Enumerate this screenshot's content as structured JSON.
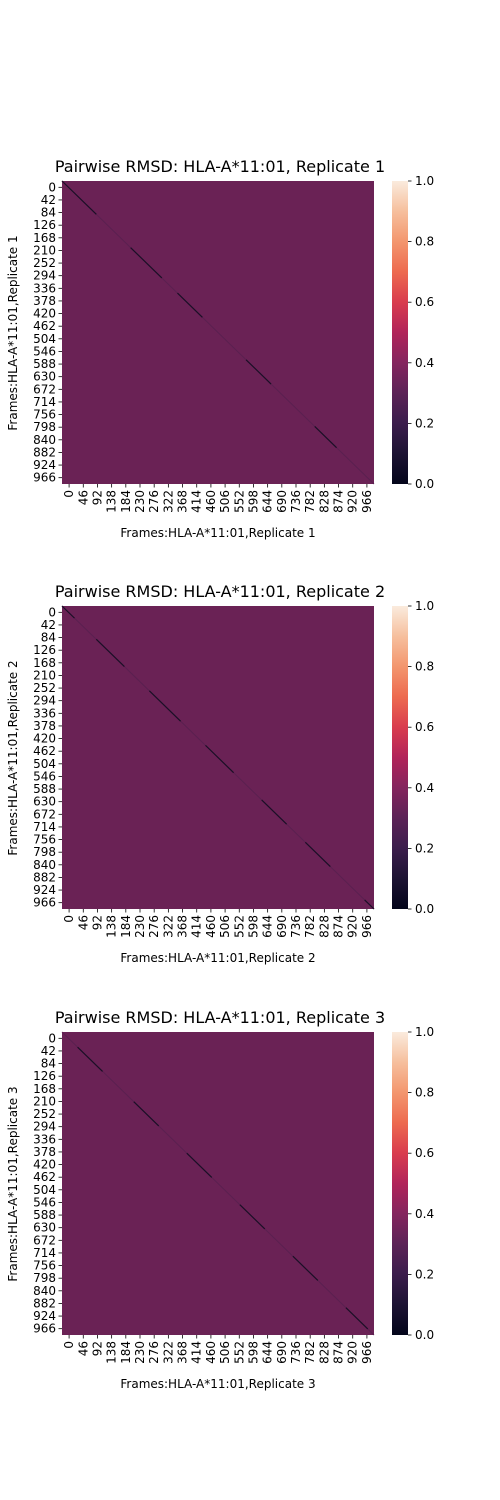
{
  "chart_data": [
    {
      "type": "heatmap",
      "title": "Pairwise RMSD: HLA-A*11:01, Replicate 1",
      "xlabel": "Frames:HLA-A*11:01,Replicate 1",
      "ylabel": "Frames:HLA-A*11:01,Replicate 1",
      "frame_range": [
        0,
        1000
      ],
      "x_ticks": [
        "0",
        "46",
        "92",
        "138",
        "184",
        "230",
        "276",
        "322",
        "368",
        "414",
        "460",
        "506",
        "552",
        "598",
        "644",
        "690",
        "736",
        "782",
        "828",
        "874",
        "920",
        "966"
      ],
      "y_ticks": [
        "0",
        "42",
        "84",
        "126",
        "168",
        "210",
        "252",
        "294",
        "336",
        "378",
        "420",
        "462",
        "504",
        "546",
        "588",
        "630",
        "672",
        "714",
        "756",
        "798",
        "840",
        "882",
        "924",
        "966"
      ],
      "background_value": 0.33,
      "diagonal_value": 0.0,
      "dark_diagonal_segments": [
        [
          0,
          110
        ],
        [
          220,
          320
        ],
        [
          370,
          450
        ],
        [
          590,
          670
        ],
        [
          810,
          880
        ],
        [
          1000,
          1000
        ]
      ],
      "colorbar": {
        "min": 0.0,
        "max": 1.0,
        "ticks": [
          "0.0",
          "0.2",
          "0.4",
          "0.6",
          "0.8",
          "1.0"
        ]
      }
    },
    {
      "type": "heatmap",
      "title": "Pairwise RMSD: HLA-A*11:01, Replicate 2",
      "xlabel": "Frames:HLA-A*11:01,Replicate 2",
      "ylabel": "Frames:HLA-A*11:01,Replicate 2",
      "frame_range": [
        0,
        1000
      ],
      "x_ticks": [
        "0",
        "46",
        "92",
        "138",
        "184",
        "230",
        "276",
        "322",
        "368",
        "414",
        "460",
        "506",
        "552",
        "598",
        "644",
        "690",
        "736",
        "782",
        "828",
        "874",
        "920",
        "966"
      ],
      "y_ticks": [
        "0",
        "42",
        "84",
        "126",
        "168",
        "210",
        "252",
        "294",
        "336",
        "378",
        "420",
        "462",
        "504",
        "546",
        "588",
        "630",
        "672",
        "714",
        "756",
        "798",
        "840",
        "882",
        "924",
        "966"
      ],
      "background_value": 0.33,
      "diagonal_value": 0.0,
      "dark_diagonal_segments": [
        [
          0,
          40
        ],
        [
          110,
          200
        ],
        [
          280,
          380
        ],
        [
          460,
          550
        ],
        [
          640,
          720
        ],
        [
          780,
          860
        ],
        [
          970,
          1000
        ]
      ],
      "colorbar": {
        "min": 0.0,
        "max": 1.0,
        "ticks": [
          "0.0",
          "0.2",
          "0.4",
          "0.6",
          "0.8",
          "1.0"
        ]
      }
    },
    {
      "type": "heatmap",
      "title": "Pairwise RMSD: HLA-A*11:01, Replicate 3",
      "xlabel": "Frames:HLA-A*11:01,Replicate 3",
      "ylabel": "Frames:HLA-A*11:01,Replicate 3",
      "frame_range": [
        0,
        1000
      ],
      "x_ticks": [
        "0",
        "46",
        "92",
        "138",
        "184",
        "230",
        "276",
        "322",
        "368",
        "414",
        "460",
        "506",
        "552",
        "598",
        "644",
        "690",
        "736",
        "782",
        "828",
        "874",
        "920",
        "966"
      ],
      "y_ticks": [
        "0",
        "42",
        "84",
        "126",
        "168",
        "210",
        "252",
        "294",
        "336",
        "378",
        "420",
        "462",
        "504",
        "546",
        "588",
        "630",
        "672",
        "714",
        "756",
        "798",
        "840",
        "882",
        "924",
        "966"
      ],
      "background_value": 0.33,
      "diagonal_value": 0.0,
      "dark_diagonal_segments": [
        [
          50,
          130
        ],
        [
          230,
          310
        ],
        [
          400,
          480
        ],
        [
          570,
          650
        ],
        [
          740,
          820
        ],
        [
          910,
          980
        ]
      ],
      "colorbar": {
        "min": 0.0,
        "max": 1.0,
        "ticks": [
          "0.0",
          "0.2",
          "0.4",
          "0.6",
          "0.8",
          "1.0"
        ]
      }
    }
  ]
}
